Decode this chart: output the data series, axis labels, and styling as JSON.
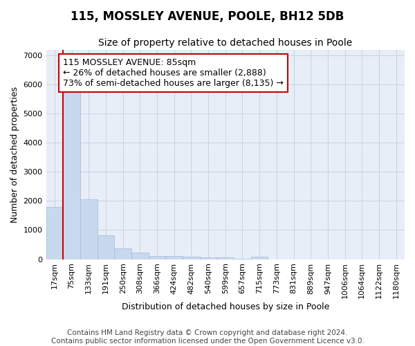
{
  "title1": "115, MOSSLEY AVENUE, POOLE, BH12 5DB",
  "title2": "Size of property relative to detached houses in Poole",
  "xlabel": "Distribution of detached houses by size in Poole",
  "ylabel": "Number of detached properties",
  "bar_labels": [
    "17sqm",
    "75sqm",
    "133sqm",
    "191sqm",
    "250sqm",
    "308sqm",
    "366sqm",
    "424sqm",
    "482sqm",
    "540sqm",
    "599sqm",
    "657sqm",
    "715sqm",
    "773sqm",
    "831sqm",
    "889sqm",
    "947sqm",
    "1006sqm",
    "1064sqm",
    "1122sqm",
    "1180sqm"
  ],
  "bar_values": [
    1800,
    5750,
    2050,
    830,
    380,
    230,
    120,
    120,
    90,
    60,
    50,
    20,
    80,
    0,
    0,
    0,
    0,
    0,
    0,
    0,
    0
  ],
  "bar_color": "#c8d9ee",
  "bar_edge_color": "#a0b8d8",
  "property_line_x": 1,
  "annotation_text_line1": "115 MOSSLEY AVENUE: 85sqm",
  "annotation_text_line2": "← 26% of detached houses are smaller (2,888)",
  "annotation_text_line3": "73% of semi-detached houses are larger (8,135) →",
  "annotation_box_facecolor": "white",
  "annotation_box_edgecolor": "#cc0000",
  "property_line_color": "#cc0000",
  "ylim": [
    0,
    7200
  ],
  "yticks": [
    0,
    1000,
    2000,
    3000,
    4000,
    5000,
    6000,
    7000
  ],
  "footer_line1": "Contains HM Land Registry data © Crown copyright and database right 2024.",
  "footer_line2": "Contains public sector information licensed under the Open Government Licence v3.0.",
  "bg_color": "#ffffff",
  "ax_bg_color": "#e8eef7",
  "grid_color": "#c8d2e2",
  "title1_fontsize": 12,
  "title2_fontsize": 10,
  "axis_label_fontsize": 9,
  "tick_fontsize": 8,
  "footer_fontsize": 7.5,
  "annotation_fontsize": 9
}
